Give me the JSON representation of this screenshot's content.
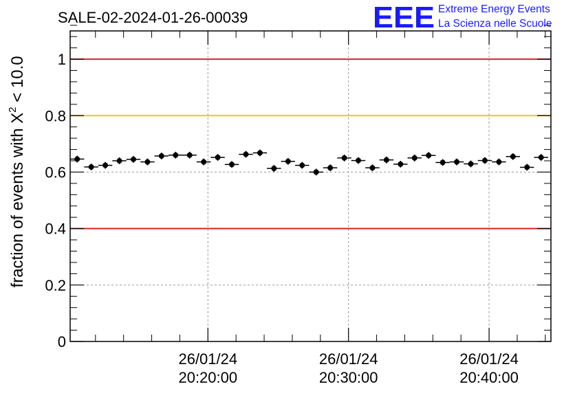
{
  "chart_data": {
    "type": "scatter",
    "title": "SALE-02-2024-01-26-00039",
    "ylabel": {
      "prefix": "fraction of events with ",
      "symbol": "X",
      "superscript": "2",
      "suffix": " < 10.0"
    },
    "xlabel": "",
    "x_unit": "minutes after 20:00:00 on 26/01/24",
    "xlim": [
      10.2,
      44.4
    ],
    "ylim": [
      0,
      1.1
    ],
    "grid": true,
    "x_ticks": [
      {
        "date": "26/01/24",
        "time": "20:20:00"
      },
      {
        "date": "26/01/24",
        "time": "20:30:00"
      },
      {
        "date": "26/01/24",
        "time": "20:40:00"
      }
    ],
    "y_ticks": [
      "0",
      "0.2",
      "0.4",
      "0.6",
      "0.8",
      "1"
    ],
    "reference_lines": [
      {
        "y": 1.0,
        "color": "#e02020"
      },
      {
        "y": 0.8,
        "color": "#ffc000"
      },
      {
        "y": 0.4,
        "color": "#e02020"
      }
    ],
    "series": [
      {
        "marker_color": "#000000",
        "points": [
          {
            "x": 10.7,
            "y": 0.646
          },
          {
            "x": 11.7,
            "y": 0.618
          },
          {
            "x": 12.7,
            "y": 0.624
          },
          {
            "x": 13.7,
            "y": 0.64
          },
          {
            "x": 14.7,
            "y": 0.645
          },
          {
            "x": 15.7,
            "y": 0.636
          },
          {
            "x": 16.7,
            "y": 0.657
          },
          {
            "x": 17.7,
            "y": 0.66
          },
          {
            "x": 18.7,
            "y": 0.66
          },
          {
            "x": 19.7,
            "y": 0.636
          },
          {
            "x": 20.7,
            "y": 0.652
          },
          {
            "x": 21.7,
            "y": 0.627
          },
          {
            "x": 22.7,
            "y": 0.663
          },
          {
            "x": 23.7,
            "y": 0.668
          },
          {
            "x": 24.7,
            "y": 0.613
          },
          {
            "x": 25.7,
            "y": 0.638
          },
          {
            "x": 26.7,
            "y": 0.624
          },
          {
            "x": 27.7,
            "y": 0.6
          },
          {
            "x": 28.7,
            "y": 0.615
          },
          {
            "x": 29.7,
            "y": 0.65
          },
          {
            "x": 30.7,
            "y": 0.641
          },
          {
            "x": 31.7,
            "y": 0.615
          },
          {
            "x": 32.7,
            "y": 0.643
          },
          {
            "x": 33.7,
            "y": 0.628
          },
          {
            "x": 34.7,
            "y": 0.65
          },
          {
            "x": 35.7,
            "y": 0.659
          },
          {
            "x": 36.7,
            "y": 0.634
          },
          {
            "x": 37.7,
            "y": 0.636
          },
          {
            "x": 38.7,
            "y": 0.629
          },
          {
            "x": 39.7,
            "y": 0.641
          },
          {
            "x": 40.7,
            "y": 0.636
          },
          {
            "x": 41.7,
            "y": 0.655
          },
          {
            "x": 42.7,
            "y": 0.617
          },
          {
            "x": 43.7,
            "y": 0.652
          }
        ]
      }
    ]
  },
  "logo": {
    "letters": "EEE",
    "line1": "Extreme Energy Events",
    "line2": "La Scienza nelle Scuole",
    "color": "#1a1aff"
  }
}
